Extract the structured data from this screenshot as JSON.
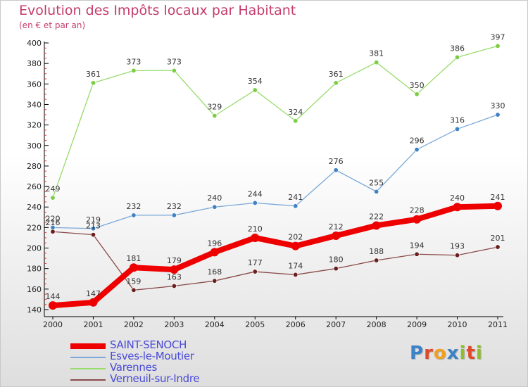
{
  "header": {
    "title": "Evolution des Impôts locaux par Habitant",
    "subtitle": "(en € et par an)"
  },
  "logo": {
    "text": "Proxiti",
    "letters": [
      {
        "ch": "P",
        "color": "#3b83c6"
      },
      {
        "ch": "r",
        "color": "#e04a2a"
      },
      {
        "ch": "o",
        "color": "#f0a020"
      },
      {
        "ch": "x",
        "color": "#3b83c6"
      },
      {
        "ch": "i",
        "color": "#8cbf2a"
      },
      {
        "ch": "t",
        "color": "#e04a2a"
      },
      {
        "ch": "i",
        "color": "#8cbf2a"
      }
    ]
  },
  "chart_data": {
    "type": "line",
    "title": "Evolution des Impôts locaux par Habitant",
    "subtitle": "(en € et par an)",
    "x": [
      "2000",
      "2001",
      "2002",
      "2003",
      "2004",
      "2005",
      "2006",
      "2007",
      "2008",
      "2009",
      "2010",
      "2011"
    ],
    "ylim": [
      140,
      400
    ],
    "yticks": [
      140,
      160,
      180,
      200,
      220,
      240,
      260,
      280,
      300,
      320,
      340,
      360,
      380,
      400
    ],
    "grid": false,
    "legend_position": "bottom-left",
    "series": [
      {
        "name": "SAINT-SENOCH",
        "color": "#ee0000",
        "marker_color": "#ee0000",
        "width": 8,
        "values": [
          144,
          147,
          181,
          179,
          196,
          210,
          202,
          212,
          222,
          228,
          240,
          241
        ]
      },
      {
        "name": "Esves-le-Moutier",
        "color": "#7aa8d8",
        "marker_color": "#3f82c4",
        "width": 1.3,
        "values": [
          220,
          219,
          232,
          232,
          240,
          244,
          241,
          276,
          255,
          296,
          316,
          330
        ]
      },
      {
        "name": "Varennes",
        "color": "#98dc6c",
        "marker_color": "#7ccc44",
        "width": 1.3,
        "values": [
          249,
          361,
          373,
          373,
          329,
          354,
          324,
          361,
          381,
          350,
          386,
          397
        ]
      },
      {
        "name": "Verneuil-sur-Indre",
        "color": "#8a4a4a",
        "marker_color": "#6a1f1f",
        "width": 1.3,
        "values": [
          216,
          213,
          159,
          163,
          168,
          177,
          174,
          180,
          188,
          194,
          193,
          201
        ]
      }
    ]
  }
}
